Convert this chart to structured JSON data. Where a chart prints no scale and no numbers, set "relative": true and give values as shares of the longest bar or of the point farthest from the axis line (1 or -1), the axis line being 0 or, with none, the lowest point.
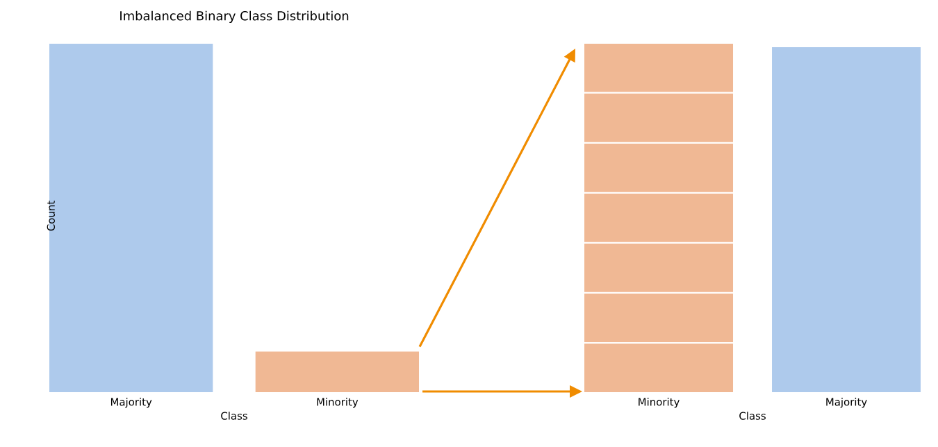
{
  "chart_data": [
    {
      "type": "bar",
      "title": "Imbalanced Binary Class Distribution",
      "xlabel": "Class",
      "ylabel": "Count",
      "categories": [
        "Majority",
        "Minority"
      ],
      "colors": [
        "#aecaec",
        "#f0b894"
      ],
      "values": [
        1,
        0.12
      ],
      "relative": true,
      "tick_labels": "x"
    },
    {
      "type": "bar",
      "xlabel": "Class",
      "categories": [
        "Minority",
        "Majority"
      ],
      "stacked": true,
      "relative": true,
      "tick_labels": "x",
      "series": [
        {
          "color": "#f0b894",
          "values": [
            0.143,
            null
          ]
        },
        {
          "color": "#f0b894",
          "values": [
            0.143,
            null
          ]
        },
        {
          "color": "#f0b894",
          "values": [
            0.143,
            null
          ]
        },
        {
          "color": "#f0b894",
          "values": [
            0.143,
            null
          ]
        },
        {
          "color": "#f0b894",
          "values": [
            0.143,
            null
          ]
        },
        {
          "color": "#f0b894",
          "values": [
            0.143,
            null
          ]
        },
        {
          "color": "#f0b894",
          "values": [
            0.142,
            null
          ]
        },
        {
          "color": "#aecaec",
          "values": [
            null,
            0.99
          ]
        }
      ]
    }
  ]
}
